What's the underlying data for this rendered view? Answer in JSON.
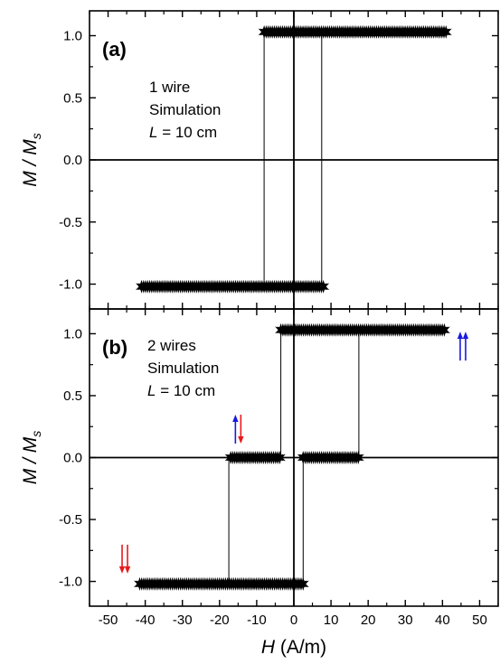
{
  "chart_data": [
    {
      "type": "line",
      "panel_label": "(a)",
      "annotation": [
        "1 wire",
        "Simulation",
        "L = 10 cm"
      ],
      "ylabel": "M / M_s",
      "ylabel_parts": {
        "main": "M / M",
        "sub": "s"
      },
      "xlim": [
        -55,
        55
      ],
      "ylim": [
        -1.2,
        1.2
      ],
      "yticks": [
        1.0,
        0.5,
        0.0,
        -0.5,
        -1.0
      ],
      "ytick_labels": [
        "1.0",
        "0.5",
        "0.0",
        "-0.5",
        "-1.0"
      ],
      "series": [
        {
          "marker": "star",
          "x": [
            -8,
            7.5,
            7.5,
            40.5,
            40.5,
            -8,
            -8
          ],
          "y": [
            -1.0,
            -1.0,
            1.0,
            1.0,
            1.0,
            1.0,
            -1.0
          ],
          "marker_bands": [
            {
              "x_from": -41,
              "x_to": 8,
              "y": -1.02
            },
            {
              "x_from": -8,
              "x_to": 41,
              "y": 1.03
            }
          ]
        }
      ]
    },
    {
      "type": "line",
      "panel_label": "(b)",
      "annotation": [
        "2 wires",
        "Simulation",
        "L = 10 cm"
      ],
      "ylabel": "M / M_s",
      "ylabel_parts": {
        "main": "M / M",
        "sub": "s"
      },
      "xlim": [
        -55,
        55
      ],
      "ylim": [
        -1.2,
        1.2
      ],
      "yticks": [
        1.0,
        0.5,
        0.0,
        -0.5,
        -1.0
      ],
      "ytick_labels": [
        "1.0",
        "0.5",
        "0.0",
        "-0.5",
        "-1.0"
      ],
      "xticks": [
        -50,
        -40,
        -30,
        -20,
        -10,
        0,
        10,
        20,
        30,
        40,
        50
      ],
      "xtick_labels": [
        "-50",
        "-40",
        "-30",
        "-20",
        "-10",
        "0",
        "10",
        "20",
        "30",
        "40",
        "50"
      ],
      "xlabel_parts": {
        "italic": "H",
        "rest": " (A/m)"
      },
      "series": [
        {
          "marker": "star",
          "up_branch": {
            "x": [
              -17.5,
              -17.5,
              17.5,
              17.5
            ],
            "y": [
              -1.0,
              0.0,
              0.0,
              1.0
            ]
          },
          "down_branch": {
            "x": [
              2.5,
              2.5,
              -3.5,
              -3.5
            ],
            "y": [
              -1.0,
              0.0,
              0.0,
              1.0
            ]
          },
          "marker_bands": [
            {
              "x_from": -41.5,
              "x_to": 2.5,
              "y": -1.02
            },
            {
              "x_from": -17,
              "x_to": -3.5,
              "y": 0.0
            },
            {
              "x_from": 2.5,
              "x_to": 17.5,
              "y": 0.0
            },
            {
              "x_from": -3.5,
              "x_to": 40.5,
              "y": 1.03
            }
          ]
        }
      ],
      "arrow_markers": [
        {
          "x": -45.5,
          "y": -0.82,
          "arrows": [
            {
              "dir": "down",
              "color": "#e8191c"
            },
            {
              "dir": "down",
              "color": "#e8191c"
            }
          ]
        },
        {
          "x": -15,
          "y": 0.23,
          "arrows": [
            {
              "dir": "up",
              "color": "#1a1adf"
            },
            {
              "dir": "down",
              "color": "#e8191c"
            }
          ]
        },
        {
          "x": 45.5,
          "y": 0.9,
          "arrows": [
            {
              "dir": "up",
              "color": "#1a1adf"
            },
            {
              "dir": "up",
              "color": "#1a1adf"
            }
          ]
        }
      ]
    }
  ]
}
